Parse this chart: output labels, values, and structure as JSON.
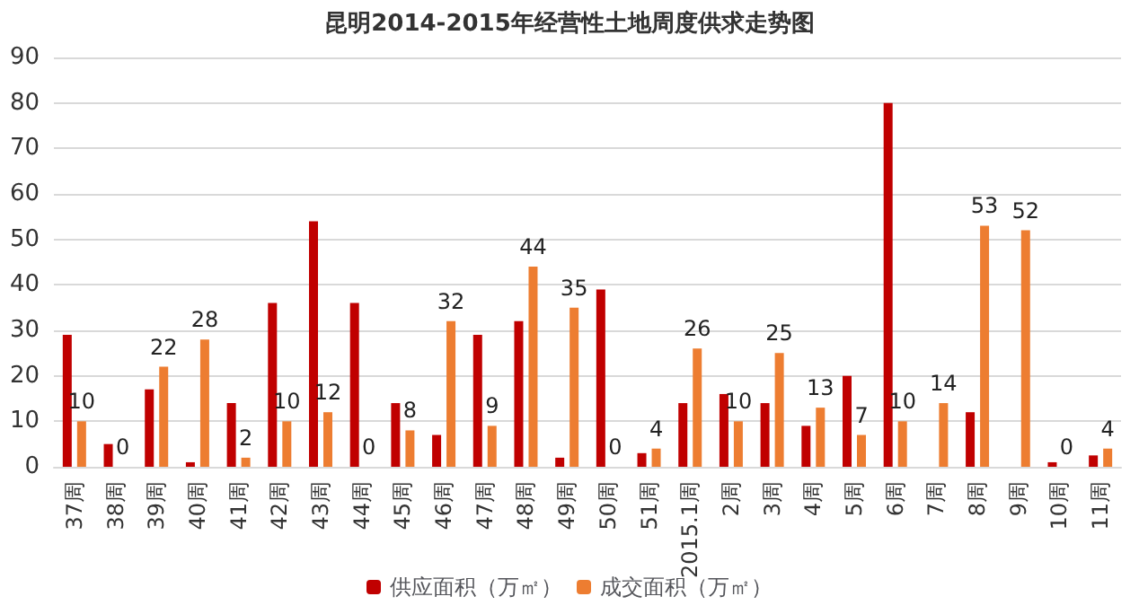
{
  "chart_data": {
    "type": "bar",
    "title": "昆明2014-2015年经营性土地周度供求走势图",
    "categories": [
      "37周",
      "38周",
      "39周",
      "40周",
      "41周",
      "42周",
      "43周",
      "44周",
      "45周",
      "46周",
      "47周",
      "48周",
      "49周",
      "50周",
      "51周",
      "2015.1周",
      "2周",
      "3周",
      "4周",
      "5周",
      "6周",
      "7周",
      "8周",
      "9周",
      "10周",
      "11周"
    ],
    "series": [
      {
        "name": "供应面积（万㎡）",
        "color": "#c00000",
        "values": [
          29,
          5,
          17,
          1,
          14,
          36,
          54,
          36,
          14,
          7,
          29,
          32,
          2,
          39,
          3,
          14,
          16,
          14,
          9,
          20,
          80,
          0,
          12,
          0,
          1,
          2.5
        ]
      },
      {
        "name": "成交面积（万㎡）",
        "color": "#ed7d31",
        "values": [
          10,
          0,
          22,
          28,
          2,
          10,
          12,
          0,
          8,
          32,
          9,
          44,
          35,
          0,
          4,
          26,
          10,
          25,
          13,
          7,
          10,
          14,
          53,
          52,
          0,
          4
        ],
        "value_labels": [
          "10",
          "0",
          "22",
          "28",
          "2",
          "10",
          "12",
          "0",
          "8",
          "32",
          "9",
          "44",
          "35",
          "0",
          "4",
          "26",
          "10",
          "25",
          "13",
          "7",
          "10",
          "14",
          "53",
          "52",
          "0",
          "4"
        ]
      }
    ],
    "ylim": [
      0,
      90
    ],
    "yticks": [
      0,
      10,
      20,
      30,
      40,
      50,
      60,
      70,
      80,
      90
    ],
    "grid": "y",
    "legend": "bottom"
  }
}
